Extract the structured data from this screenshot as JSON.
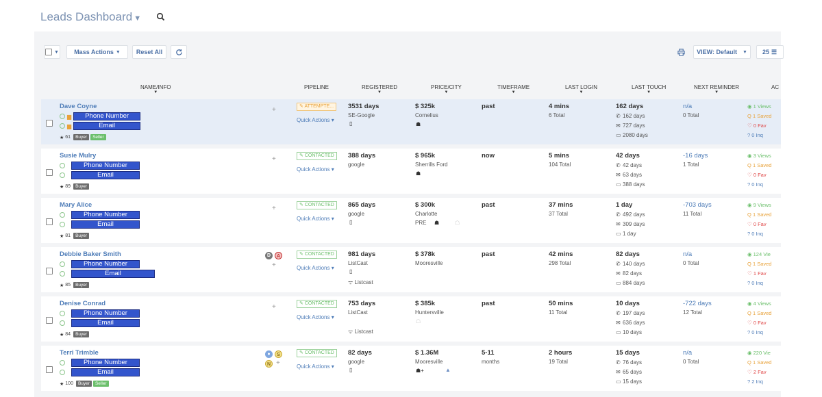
{
  "header": {
    "title": "Leads Dashboard"
  },
  "toolbar": {
    "mass_actions": "Mass Actions",
    "reset_all": "Reset All",
    "view": "VIEW: Default",
    "per_page": "25"
  },
  "columns": {
    "name": "NAME/INFO",
    "pipeline": "PIPELINE",
    "registered": "REGISTERED",
    "price": "PRICE/CITY",
    "timeframe": "TIMEFRAME",
    "last_login": "LAST LOGIN",
    "last_touch": "LAST TOUCH",
    "next_reminder": "NEXT REMINDER",
    "actions": "AC"
  },
  "rows": [
    {
      "name": "Dave Coyne",
      "phone": "Phone Number",
      "email": "Email",
      "score": "61",
      "tags": [
        "Buyer",
        "Seller"
      ],
      "pipeline": "ATTEMPTE...",
      "quick": "Quick Actions",
      "registered": "3531 days",
      "reg_sub": "SE-Google",
      "price": "$ 325k",
      "city": "Cornelius",
      "timeframe": "past",
      "login": "4 mins",
      "login_total": "6 Total",
      "touch": "162 days",
      "touch_calls": "162 days",
      "touch_emails": "727 days",
      "touch_texts": "2080 days",
      "reminder": "n/a",
      "reminder_total": "0 Total",
      "views": "1 Views",
      "saved": "1 Saved",
      "fav": "0 Fav",
      "inq": "0 Inq"
    },
    {
      "name": "Susie Mulry",
      "phone": "Phone Number",
      "email": "Email",
      "score": "89",
      "tags": [
        "Buyer"
      ],
      "pipeline": "CONTACTED",
      "quick": "Quick Actions",
      "registered": "388 days",
      "reg_sub": "google",
      "price": "$ 965k",
      "city": "Sherrills Ford",
      "timeframe": "now",
      "login": "5 mins",
      "login_total": "104 Total",
      "touch": "42 days",
      "touch_calls": "42 days",
      "touch_emails": "63 days",
      "touch_texts": "388 days",
      "reminder": "-16 days",
      "reminder_total": "1 Total",
      "views": "3 Views",
      "saved": "1 Saved",
      "fav": "0 Fav",
      "inq": "0 Inq"
    },
    {
      "name": "Mary Alice",
      "phone": "Phone Number",
      "email": "Email",
      "score": "81",
      "tags": [
        "Buyer"
      ],
      "pipeline": "CONTACTED",
      "quick": "Quick Actions",
      "registered": "865 days",
      "reg_sub": "google",
      "price": "$ 300k",
      "city": "Charlotte",
      "city_extra": "PRE",
      "timeframe": "past",
      "login": "37 mins",
      "login_total": "37 Total",
      "touch": "1 day",
      "touch_calls": "492 days",
      "touch_emails": "309 days",
      "touch_texts": "1 day",
      "reminder": "-703 days",
      "reminder_total": "11 Total",
      "views": "9 Views",
      "saved": "1 Saved",
      "fav": "0 Fav",
      "inq": "0 Inq"
    },
    {
      "name": "Debbie Baker Smith",
      "phone": "Phone Number",
      "email": "Email",
      "score": "85",
      "tags": [
        "Buyer"
      ],
      "pipeline": "CONTACTED",
      "quick": "Quick Actions",
      "registered": "981 days",
      "reg_sub": "ListCast",
      "reg_sub2": "Listcast",
      "price": "$ 378k",
      "city": "Mooresville",
      "timeframe": "past",
      "login": "42 mins",
      "login_total": "298 Total",
      "touch": "82 days",
      "touch_calls": "140 days",
      "touch_emails": "82 days",
      "touch_texts": "884 days",
      "reminder": "n/a",
      "reminder_total": "0 Total",
      "views": "124 Vie",
      "saved": "1 Saved",
      "fav": "1 Fav",
      "inq": "0 Inq"
    },
    {
      "name": "Denise Conrad",
      "phone": "Phone Number",
      "email": "Email",
      "score": "84",
      "tags": [
        "Buyer"
      ],
      "pipeline": "CONTACTED",
      "quick": "Quick Actions",
      "registered": "753 days",
      "reg_sub": "ListCast",
      "reg_sub2": "Listcast",
      "price": "$ 385k",
      "city": "Huntersville",
      "timeframe": "past",
      "login": "50 mins",
      "login_total": "11 Total",
      "touch": "10 days",
      "touch_calls": "197 days",
      "touch_emails": "636 days",
      "touch_texts": "10 days",
      "reminder": "-722 days",
      "reminder_total": "12 Total",
      "views": "4 Views",
      "saved": "1 Saved",
      "fav": "0 Fav",
      "inq": "0 Inq"
    },
    {
      "name": "Terri Trimble",
      "phone": "Phone Number",
      "email": "Email",
      "score": "100",
      "tags": [
        "Buyer",
        "Seller"
      ],
      "pipeline": "CONTACTED",
      "quick": "Quick Actions",
      "registered": "82 days",
      "reg_sub": "google",
      "price": "$ 1.36M",
      "city": "Mooresville",
      "timeframe": "5-11",
      "timeframe_sub": "months",
      "login": "2 hours",
      "login_total": "19 Total",
      "touch": "15 days",
      "touch_calls": "76 days",
      "touch_emails": "65 days",
      "touch_texts": "15 days",
      "reminder": "n/a",
      "reminder_total": "0 Total",
      "views": "220 Vie",
      "saved": "1 Saved",
      "fav": "2 Fav",
      "inq": "2 Inq"
    }
  ]
}
